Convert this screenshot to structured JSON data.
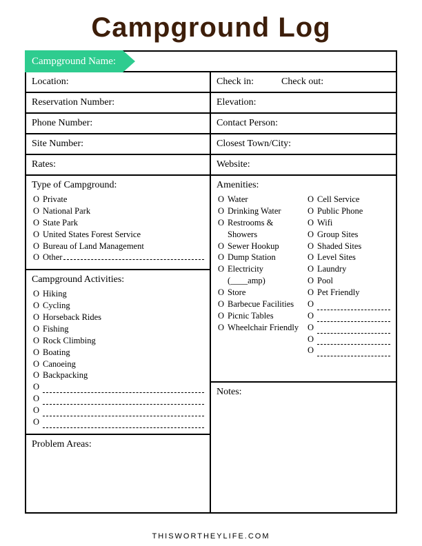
{
  "title": "Campground Log",
  "colors": {
    "title_color": "#3d1e0a",
    "banner_bg": "#2ecc8f",
    "banner_text": "#ffffff",
    "border": "#000000",
    "background": "#ffffff"
  },
  "banner_label": "Campground Name:",
  "rows": {
    "location": "Location:",
    "check_in": "Check in:",
    "check_out": "Check out:",
    "reservation": "Reservation Number:",
    "elevation": "Elevation:",
    "phone": "Phone Number:",
    "contact": "Contact Person:",
    "site": "Site Number:",
    "town": "Closest Town/City:",
    "rates": "Rates:",
    "website": "Website:"
  },
  "type_section": {
    "title": "Type of Campground:",
    "items": [
      "Private",
      "National Park",
      "State Park",
      "United States Forest Service",
      "Bureau of Land Management"
    ],
    "other_label": "Other"
  },
  "activities_section": {
    "title": "Campground Activities:",
    "items": [
      "Hiking",
      "Cycling",
      "Horseback Rides",
      "Fishing",
      "Rock Climbing",
      "Boating",
      "Canoeing",
      "Backpacking"
    ],
    "blank_count": 4
  },
  "problem_section": {
    "title": "Problem Areas:"
  },
  "amenities_section": {
    "title": "Amenities:",
    "col1": [
      "Water",
      "Drinking Water",
      "Restrooms & Showers",
      "Sewer Hookup",
      "Dump Station",
      "Electricity (____amp)",
      "Store",
      "Barbecue Facilities",
      "Picnic Tables",
      "Wheelchair Friendly"
    ],
    "col2": [
      "Cell Service",
      "Public Phone",
      "Wifi",
      "Group Sites",
      "Shaded Sites",
      "Level Sites",
      "Laundry",
      "Pool",
      "Pet Friendly"
    ],
    "col2_blank_count": 5
  },
  "notes_section": {
    "title": "Notes:"
  },
  "footer": "THISWORTHEYLIFE.COM",
  "checkbox_glyph": "O"
}
